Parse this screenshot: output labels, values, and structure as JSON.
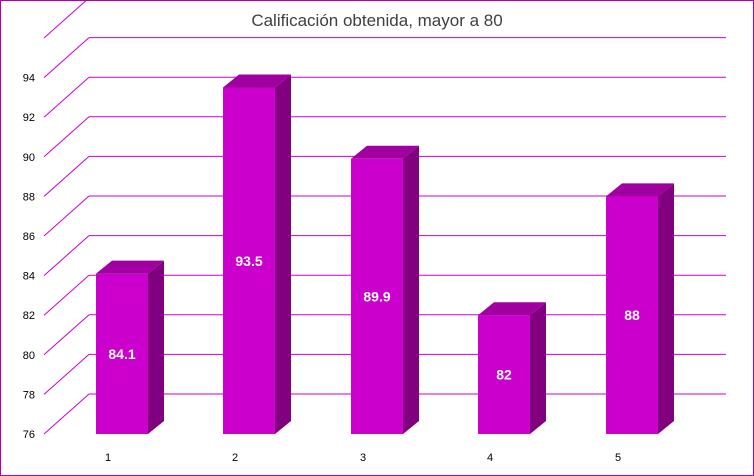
{
  "chart_data": {
    "type": "bar",
    "title": "Calificación obtenida, mayor a 80",
    "categories": [
      "1",
      "2",
      "3",
      "4",
      "5"
    ],
    "values": [
      84.1,
      93.5,
      89.9,
      82,
      88
    ],
    "data_labels": [
      "84.1",
      "93.5",
      "89.9",
      "82",
      "88"
    ],
    "y_ticks": [
      "76",
      "78",
      "80",
      "82",
      "84",
      "86",
      "88",
      "90",
      "92",
      "94"
    ],
    "ylim": [
      76,
      96
    ],
    "xlabel": "",
    "ylabel": "",
    "grid": true,
    "legend": "none",
    "style": "3d-column",
    "colors": {
      "bar_front": "#cc00cc",
      "bar_side": "#800080",
      "bar_top": "#a000a0",
      "grid": "#cc00cc"
    }
  }
}
